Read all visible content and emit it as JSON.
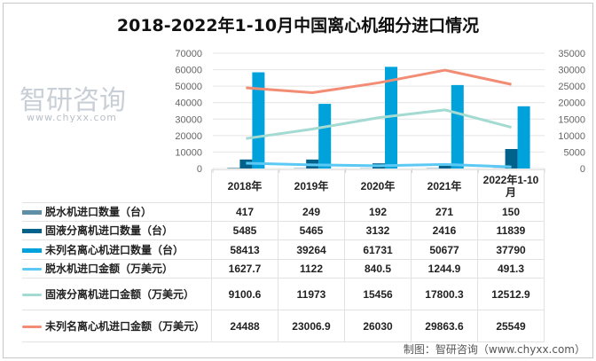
{
  "title": "2018-2022年1-10月中国离心机细分进口情况",
  "watermark": {
    "logo": "智研咨询",
    "url": "www.chyxx.com"
  },
  "credit": "制图：智研咨询（www.chyxx.com）",
  "chart_data": {
    "type": "bar",
    "title": "2018-2022年1-10月中国离心机细分进口情况",
    "categories": [
      "2018年",
      "2019年",
      "2020年",
      "2021年",
      "2022年1-10月"
    ],
    "left_axis": {
      "range": [
        0,
        70000
      ],
      "ticks": [
        "70000",
        "60000",
        "50000",
        "40000",
        "30000",
        "20000",
        "10000",
        "0"
      ]
    },
    "right_axis": {
      "range": [
        0,
        35000
      ],
      "ticks": [
        "35000",
        "30000",
        "25000",
        "20000",
        "15000",
        "10000",
        "5000",
        "0"
      ]
    },
    "grid": true,
    "legend": "table",
    "series": [
      {
        "name": "脱水机进口数量（台）",
        "type": "bar",
        "axis": "left",
        "color": "#5f8fa7",
        "values": [
          417,
          249,
          192,
          271,
          150
        ]
      },
      {
        "name": "固液分离机进口数量（台）",
        "type": "bar",
        "axis": "left",
        "color": "#00618a",
        "values": [
          5485,
          5465,
          3132,
          2416,
          11839
        ]
      },
      {
        "name": "未列名离心机进口数量（台）",
        "type": "bar",
        "axis": "left",
        "color": "#00a2dc",
        "values": [
          58413,
          39264,
          61731,
          50677,
          37790
        ]
      },
      {
        "name": "脱水机进口金额（万美元）",
        "type": "line",
        "axis": "right",
        "color": "#5cc9f5",
        "values": [
          1627.7,
          1122,
          840.5,
          1244.9,
          491.3
        ]
      },
      {
        "name": "固液分离机进口金额（万美元）",
        "type": "line",
        "axis": "right",
        "color": "#a3dbd3",
        "values": [
          9100.6,
          11973,
          15456,
          17800.3,
          12512.9
        ]
      },
      {
        "name": "未列名离心机进口金额（万美元）",
        "type": "line",
        "axis": "right",
        "color": "#f28c74",
        "values": [
          24488,
          23006.9,
          26030,
          29863.6,
          25549
        ]
      }
    ]
  }
}
